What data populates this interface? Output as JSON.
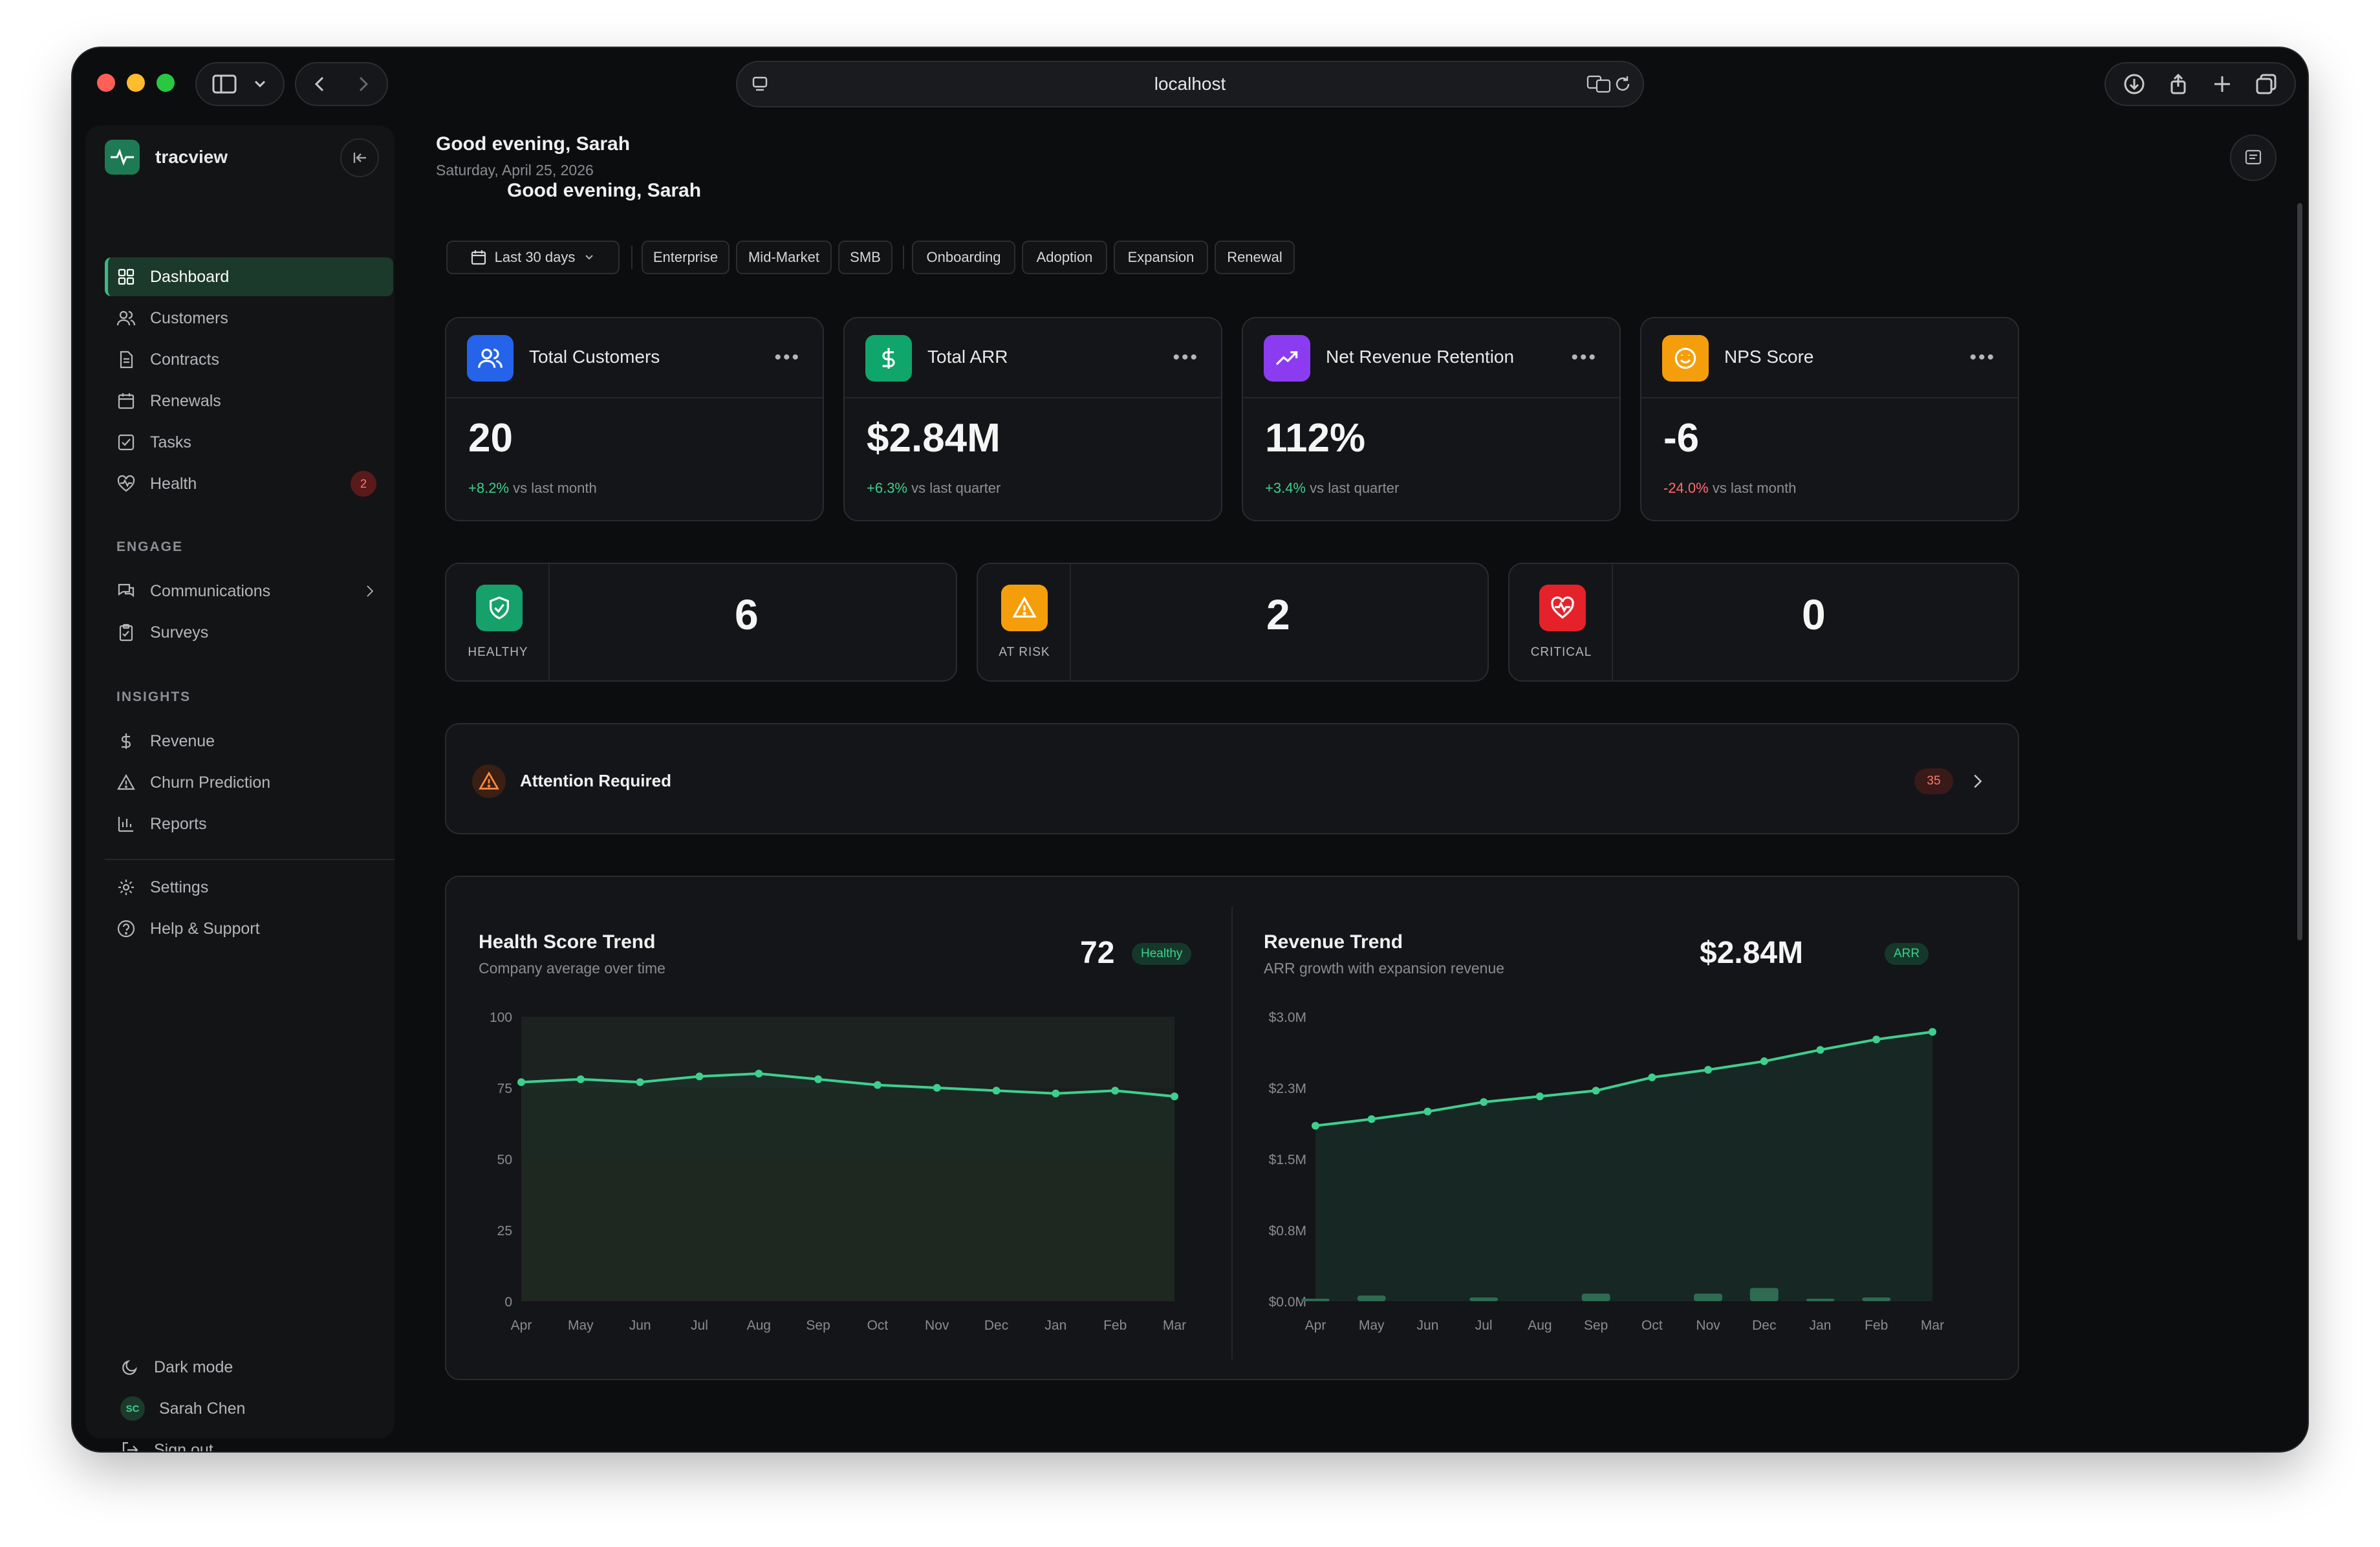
{
  "browser": {
    "url": "localhost"
  },
  "sidebar": {
    "brand": "tracview",
    "items": [
      {
        "label": "Dashboard",
        "icon": "grid-icon"
      },
      {
        "label": "Customers",
        "icon": "users-icon"
      },
      {
        "label": "Contracts",
        "icon": "file-icon"
      },
      {
        "label": "Renewals",
        "icon": "calendar-icon"
      },
      {
        "label": "Tasks",
        "icon": "check-square-icon"
      },
      {
        "label": "Health",
        "icon": "heart-icon",
        "badge": "2"
      }
    ],
    "engage_label": "ENGAGE",
    "engage_items": [
      {
        "label": "Communications",
        "icon": "chat-icon"
      },
      {
        "label": "Surveys",
        "icon": "clipboard-icon"
      }
    ],
    "insights_label": "INSIGHTS",
    "insights_items": [
      {
        "label": "Revenue",
        "icon": "dollar-icon"
      },
      {
        "label": "Churn Prediction",
        "icon": "warning-icon"
      },
      {
        "label": "Reports",
        "icon": "bar-chart-icon"
      }
    ],
    "settings_items": [
      {
        "label": "Settings",
        "icon": "gear-icon"
      },
      {
        "label": "Help & Support",
        "icon": "help-icon"
      }
    ],
    "footer": {
      "dark_mode": "Dark mode",
      "user_initials": "SC",
      "user_name": "Sarah Chen",
      "sign_out": "Sign out"
    }
  },
  "header": {
    "greeting": "Good evening, Sarah",
    "date": "Saturday, April 25, 2026"
  },
  "filters": {
    "date_range": "Last 30 days",
    "segments": [
      "Enterprise",
      "Mid-Market",
      "SMB"
    ],
    "stages": [
      "Onboarding",
      "Adoption",
      "Expansion",
      "Renewal"
    ]
  },
  "kpis": [
    {
      "title": "Total Customers",
      "value": "20",
      "change": "+8.2%",
      "period": "vs last month",
      "trend": "pos",
      "color": "#2563eb"
    },
    {
      "title": "Total ARR",
      "value": "$2.84M",
      "change": "+6.3%",
      "period": "vs last quarter",
      "trend": "pos",
      "color": "#10a56a"
    },
    {
      "title": "Net Revenue Retention",
      "value": "112%",
      "change": "+3.4%",
      "period": "vs last quarter",
      "trend": "pos",
      "color": "#8b3cf0"
    },
    {
      "title": "NPS Score",
      "value": "-6",
      "change": "-24.0%",
      "period": "vs last month",
      "trend": "neg",
      "color": "#f59e0b"
    }
  ],
  "health_status": [
    {
      "label": "HEALTHY",
      "count": "6",
      "color": "#16a06a"
    },
    {
      "label": "AT RISK",
      "count": "2",
      "color": "#f59e0b"
    },
    {
      "label": "CRITICAL",
      "count": "0",
      "color": "#e5222a"
    }
  ],
  "attention": {
    "title": "Attention Required",
    "count": "35"
  },
  "chart_data": [
    {
      "type": "line",
      "title": "Health Score Trend",
      "subtitle": "Company average over time",
      "headline_value": "72",
      "headline_badge": "Healthy",
      "categories": [
        "Apr",
        "May",
        "Jun",
        "Jul",
        "Aug",
        "Sep",
        "Oct",
        "Nov",
        "Dec",
        "Jan",
        "Feb",
        "Mar"
      ],
      "values": [
        77,
        78,
        77,
        79,
        80,
        78,
        76,
        75,
        74,
        73,
        74,
        72
      ],
      "yticks": [
        "100",
        "75",
        "50",
        "25",
        "0"
      ],
      "ylim": [
        0,
        100
      ],
      "line_color": "#3ecf8e"
    },
    {
      "type": "area",
      "title": "Revenue Trend",
      "subtitle": "ARR growth with expansion revenue",
      "headline_value": "$2.84M",
      "headline_badge": "ARR",
      "categories": [
        "Apr",
        "May",
        "Jun",
        "Jul",
        "Aug",
        "Sep",
        "Oct",
        "Nov",
        "Dec",
        "Jan",
        "Feb",
        "Mar"
      ],
      "values": [
        1.85,
        1.92,
        2.0,
        2.1,
        2.16,
        2.22,
        2.36,
        2.44,
        2.53,
        2.65,
        2.76,
        2.84
      ],
      "expansion_values": [
        0.02,
        0.06,
        0,
        0.04,
        0,
        0.08,
        0,
        0.08,
        0.14,
        0.01,
        0.04,
        0
      ],
      "yticks": [
        "$3.0M",
        "$2.3M",
        "$1.5M",
        "$0.8M",
        "$0.0M"
      ],
      "ylim": [
        0,
        3.0
      ],
      "line_color": "#3ecf8e"
    }
  ]
}
